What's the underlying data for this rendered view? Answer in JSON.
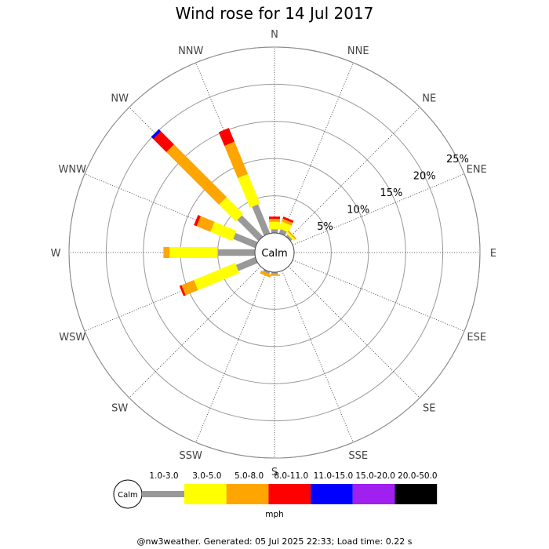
{
  "chart_data": {
    "type": "wind_rose",
    "title": "Wind rose for 14 Jul 2017",
    "directions": [
      "N",
      "NNE",
      "NE",
      "ENE",
      "E",
      "ESE",
      "SE",
      "SSE",
      "S",
      "SSW",
      "SW",
      "WSW",
      "W",
      "WNW",
      "NW",
      "NNW"
    ],
    "radial_ticks": [
      {
        "value": 5,
        "label": "5%"
      },
      {
        "value": 10,
        "label": "10%"
      },
      {
        "value": 15,
        "label": "15%"
      },
      {
        "value": 20,
        "label": "20%"
      },
      {
        "value": 25,
        "label": "25%"
      }
    ],
    "radial_max": 27.5,
    "calm_label": "Calm",
    "speed_bins": [
      {
        "label": "1.0-3.0",
        "color": "#999999"
      },
      {
        "label": "3.0-5.0",
        "color": "#ffff00"
      },
      {
        "label": "5.0-8.0",
        "color": "#ffa500"
      },
      {
        "label": "8.0-11.0",
        "color": "#ff0000"
      },
      {
        "label": "11.0-15.0",
        "color": "#0000ff"
      },
      {
        "label": "15.0-20.0",
        "color": "#a020f0"
      },
      {
        "label": "20.0-50.0",
        "color": "#000000"
      }
    ],
    "speed_unit": "mph",
    "frequencies": {
      "N": [
        0.5,
        1.0,
        0.4,
        0.3,
        0,
        0,
        0
      ],
      "NNE": [
        0.6,
        1.0,
        0.4,
        0.3,
        0,
        0,
        0
      ],
      "NE": [
        0.3,
        0.3,
        0.2,
        0,
        0,
        0,
        0
      ],
      "ENE": [
        0,
        0,
        0,
        0,
        0,
        0,
        0
      ],
      "E": [
        0,
        0,
        0,
        0,
        0,
        0,
        0
      ],
      "ESE": [
        0,
        0,
        0,
        0,
        0,
        0,
        0
      ],
      "SE": [
        0,
        0,
        0,
        0,
        0,
        0,
        0
      ],
      "SSE": [
        0,
        0,
        0,
        0,
        0,
        0,
        0
      ],
      "S": [
        0.3,
        0,
        0.2,
        0,
        0,
        0,
        0
      ],
      "SSW": [
        0.3,
        0,
        0.4,
        0,
        0,
        0,
        0
      ],
      "SW": [
        0,
        0,
        0,
        0,
        0,
        0,
        0
      ],
      "WSW": [
        2.8,
        6.0,
        1.8,
        0.3,
        0,
        0,
        0
      ],
      "W": [
        5.0,
        6.5,
        0.8,
        0,
        0,
        0,
        0
      ],
      "WNW": [
        3.2,
        3.2,
        2.0,
        0.4,
        0,
        0,
        0
      ],
      "NW": [
        4.0,
        3.2,
        10.0,
        2.5,
        0.4,
        0,
        0
      ],
      "NNW": [
        4.2,
        4.3,
        4.7,
        2.0,
        0,
        0,
        0
      ]
    }
  },
  "footer": "@nw3weather. Generated: 05 Jul 2025 22:33; Load time: 0.22 s"
}
